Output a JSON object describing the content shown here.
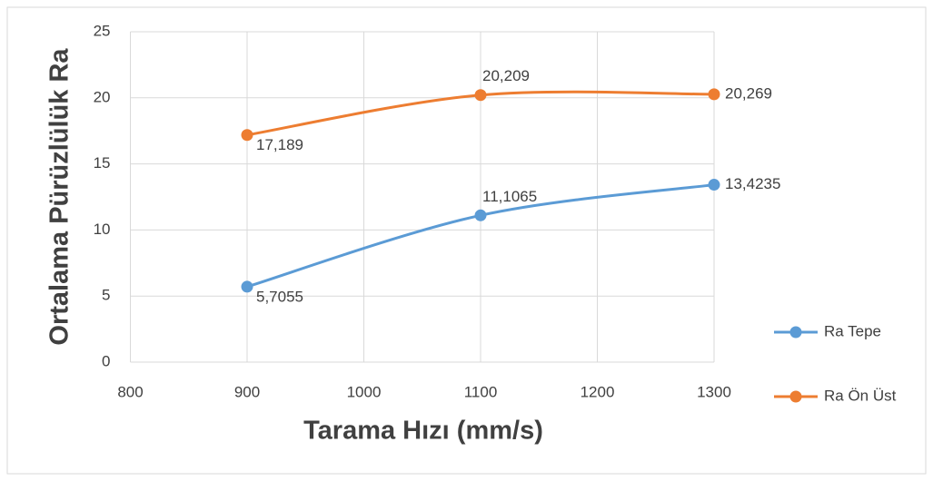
{
  "chart_data": {
    "type": "scatter-smooth",
    "x_label": "Tarama Hızı (mm/s)",
    "y_label": "Ortalama Pürüzlülük Ra",
    "x": [
      900,
      1100,
      1300
    ],
    "series": [
      {
        "name": "Ra Tepe",
        "color": "#5b9bd5",
        "values": [
          5.7055,
          11.1065,
          13.4235
        ],
        "value_labels": [
          "5,7055",
          "11,1065",
          "13,4235"
        ]
      },
      {
        "name": "Ra Ön Üst",
        "color": "#ed7d31",
        "values": [
          17.189,
          20.209,
          20.269
        ],
        "value_labels": [
          "17,189",
          "20,209",
          "20,269"
        ]
      }
    ],
    "xlim": [
      800,
      1300
    ],
    "xticks": [
      800,
      900,
      1000,
      1100,
      1200,
      1300
    ],
    "ylim": [
      0,
      25
    ],
    "yticks": [
      0,
      5,
      10,
      15,
      20,
      25
    ],
    "grid": true,
    "legend": "right"
  }
}
